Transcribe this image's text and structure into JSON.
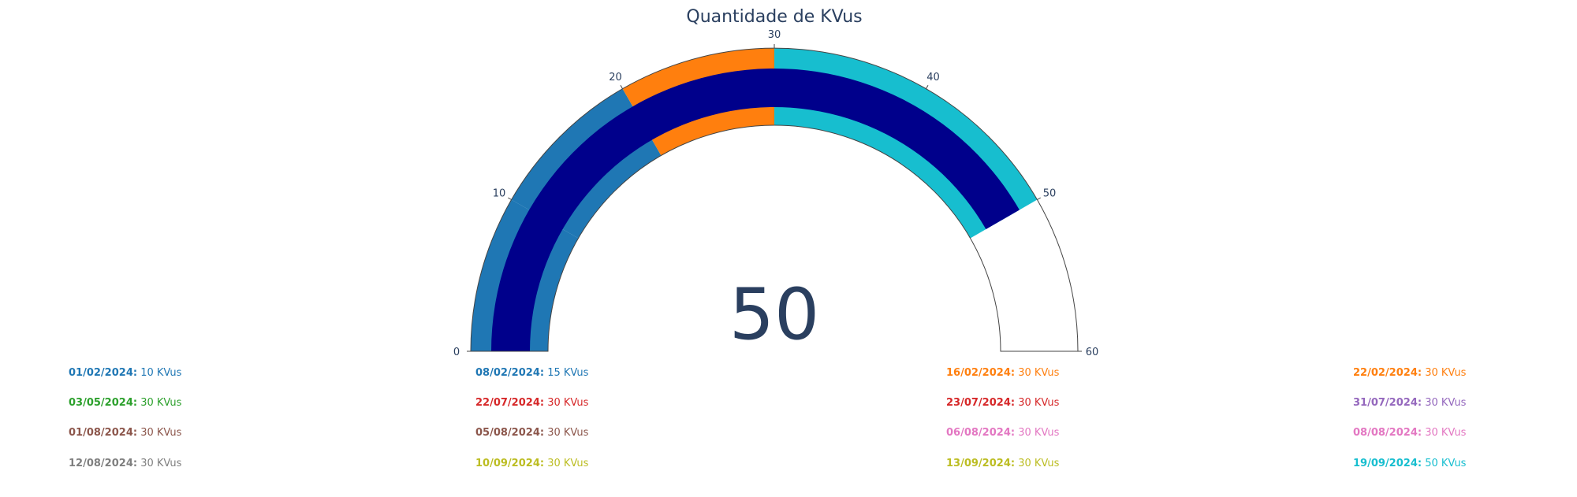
{
  "chart_data": {
    "type": "gauge",
    "title": "Quantidade de KVus",
    "value": 50,
    "value_label": "50",
    "axis_range": [
      0,
      60
    ],
    "ticks": [
      {
        "value": 0,
        "label": "0"
      },
      {
        "value": 10,
        "label": "10"
      },
      {
        "value": 20,
        "label": "20"
      },
      {
        "value": 30,
        "label": "30"
      },
      {
        "value": 40,
        "label": "40"
      },
      {
        "value": 50,
        "label": "50"
      },
      {
        "value": 60,
        "label": "60"
      }
    ],
    "bar_color": "#00008b",
    "steps": [
      {
        "range": [
          0,
          10
        ],
        "color": "#1f77b4"
      },
      {
        "range": [
          10,
          20
        ],
        "color": "#1f77b4"
      },
      {
        "range": [
          20,
          30
        ],
        "color": "#ff7f0e"
      },
      {
        "range": [
          30,
          50
        ],
        "color": "#17becf"
      }
    ],
    "entries": [
      {
        "date": "01/02/2024:",
        "value": "10 KVus",
        "color": "#1f77b4"
      },
      {
        "date": "08/02/2024:",
        "value": "15 KVus",
        "color": "#1f77b4"
      },
      {
        "date": "16/02/2024:",
        "value": "30 KVus",
        "color": "#ff7f0e"
      },
      {
        "date": "22/02/2024:",
        "value": "30 KVus",
        "color": "#ff7f0e"
      },
      {
        "date": "03/05/2024:",
        "value": "30 KVus",
        "color": "#2ca02c"
      },
      {
        "date": "22/07/2024:",
        "value": "30 KVus",
        "color": "#d62728"
      },
      {
        "date": "23/07/2024:",
        "value": "30 KVus",
        "color": "#d62728"
      },
      {
        "date": "31/07/2024:",
        "value": "30 KVus",
        "color": "#9467bd"
      },
      {
        "date": "01/08/2024:",
        "value": "30 KVus",
        "color": "#8c564b"
      },
      {
        "date": "05/08/2024:",
        "value": "30 KVus",
        "color": "#8c564b"
      },
      {
        "date": "06/08/2024:",
        "value": "30 KVus",
        "color": "#e377c2"
      },
      {
        "date": "08/08/2024:",
        "value": "30 KVus",
        "color": "#e377c2"
      },
      {
        "date": "12/08/2024:",
        "value": "30 KVus",
        "color": "#7f7f7f"
      },
      {
        "date": "10/09/2024:",
        "value": "30 KVus",
        "color": "#bcbd22"
      },
      {
        "date": "13/09/2024:",
        "value": "30 KVus",
        "color": "#bcbd22"
      },
      {
        "date": "19/09/2024:",
        "value": "50 KVus",
        "color": "#17becf"
      }
    ]
  }
}
